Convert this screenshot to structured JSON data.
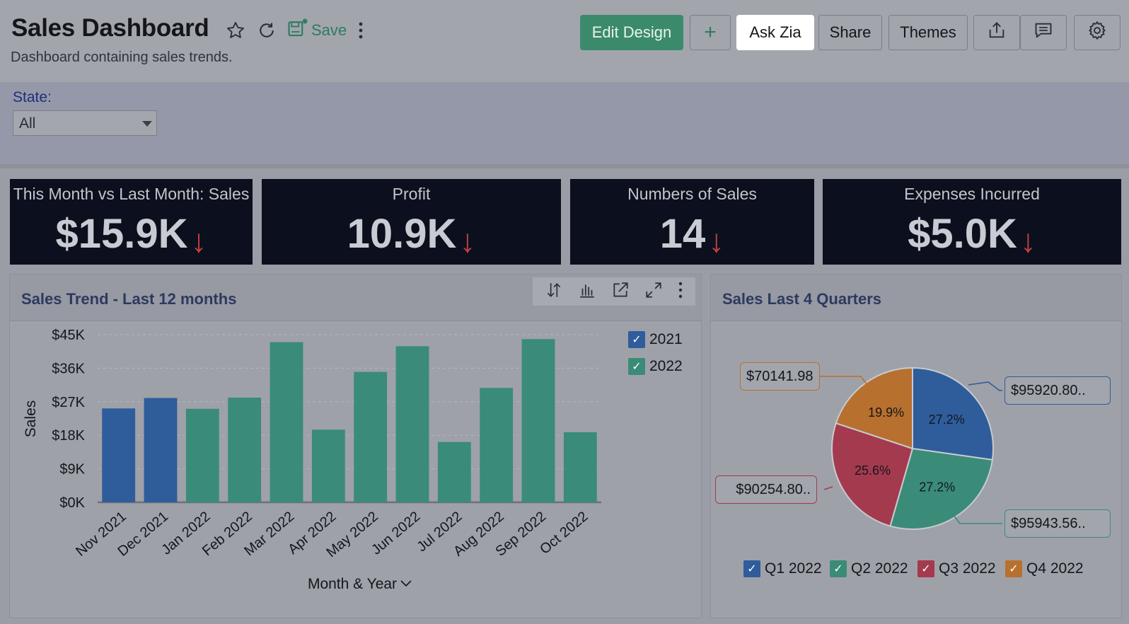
{
  "header": {
    "title": "Sales Dashboard",
    "subtitle": "Dashboard containing sales trends.",
    "save_label": "Save",
    "buttons": {
      "edit_design": "Edit Design",
      "add": "+",
      "ask_zia": "Ask Zia",
      "share": "Share",
      "themes": "Themes"
    }
  },
  "filter": {
    "label": "State:",
    "value": "All"
  },
  "kpis": [
    {
      "title": "This Month vs Last Month: Sales",
      "value": "$15.9K",
      "trend": "down"
    },
    {
      "title": "Profit",
      "value": "10.9K",
      "trend": "down"
    },
    {
      "title": "Numbers of Sales",
      "value": "14",
      "trend": "down"
    },
    {
      "title": "Expenses Incurred",
      "value": "$5.0K",
      "trend": "down"
    }
  ],
  "colors": {
    "series_2021": "#2f5d9b",
    "series_2022": "#3a8c78",
    "q1": "#2f5d9b",
    "q2": "#3a8c78",
    "q3": "#a43a4e",
    "q4": "#b8702e",
    "kpi_bg": "#0c0f1d",
    "down_arrow": "#c04040",
    "primary": "#3b8a6c"
  },
  "trend_panel": {
    "title": "Sales Trend - Last 12 months",
    "toolbar_icons": [
      "sort-icon",
      "chart-type-icon",
      "open-new-icon",
      "expand-icon",
      "more-icon"
    ]
  },
  "quarter_panel": {
    "title": "Sales Last 4 Quarters"
  },
  "chart_data": [
    {
      "type": "bar",
      "title": "Sales Trend - Last 12 months",
      "xlabel": "Month & Year",
      "ylabel": "Sales",
      "categories": [
        "Nov 2021",
        "Dec 2021",
        "Jan 2022",
        "Feb 2022",
        "Mar 2022",
        "Apr 2022",
        "May 2022",
        "Jun 2022",
        "Jul 2022",
        "Aug 2022",
        "Sep 2022",
        "Oct 2022"
      ],
      "values": [
        25200,
        28000,
        25100,
        28100,
        43000,
        19500,
        35000,
        41900,
        16200,
        30700,
        43800,
        18800
      ],
      "series_of_category": [
        "2021",
        "2021",
        "2022",
        "2022",
        "2022",
        "2022",
        "2022",
        "2022",
        "2022",
        "2022",
        "2022",
        "2022"
      ],
      "legend": [
        "2021",
        "2022"
      ],
      "legend_position": "top-right",
      "ylim": [
        0,
        45000
      ],
      "yticks": [
        0,
        9000,
        18000,
        27000,
        36000,
        45000
      ],
      "ytick_labels": [
        "$0K",
        "$9K",
        "$18K",
        "$27K",
        "$36K",
        "$45K"
      ],
      "grid": true
    },
    {
      "type": "pie",
      "title": "Sales Last 4 Quarters",
      "labels": [
        "Q1 2022",
        "Q2 2022",
        "Q3 2022",
        "Q4 2022"
      ],
      "values": [
        95920.8,
        95943.56,
        90254.8,
        70141.98
      ],
      "percents": [
        "27.2%",
        "27.2%",
        "25.6%",
        "19.9%"
      ],
      "callouts": [
        "$95920.80..",
        "$95943.56..",
        "$90254.80..",
        "$70141.98"
      ],
      "legend_position": "bottom"
    }
  ]
}
